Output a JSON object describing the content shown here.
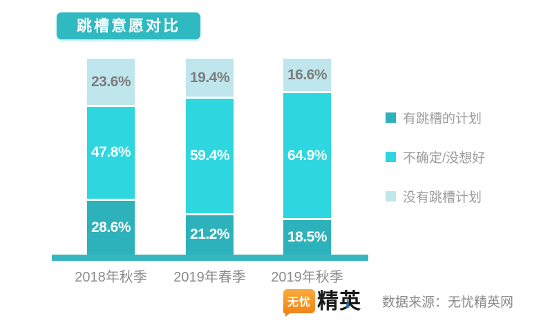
{
  "title": "跳槽意愿对比",
  "chart_data": {
    "type": "bar",
    "stacked": true,
    "unit": "%",
    "title": "跳槽意愿对比",
    "categories": [
      "2018年秋季",
      "2019年春季",
      "2019年秋季"
    ],
    "series": [
      {
        "name": "有跳槽的计划",
        "color": "#2db2bb",
        "label_color": "#ffffff",
        "values": [
          28.6,
          21.2,
          18.5
        ]
      },
      {
        "name": "不确定/没想好",
        "color": "#2ed7e0",
        "label_color": "#ffffff",
        "values": [
          47.8,
          59.4,
          64.9
        ]
      },
      {
        "name": "没有跳槽计划",
        "color": "#bfe6ec",
        "label_color": "#7d7d7d",
        "values": [
          23.6,
          19.4,
          16.6
        ]
      }
    ],
    "data_labels": [
      [
        "28.6%",
        "21.2%",
        "18.5%"
      ],
      [
        "47.8%",
        "59.4%",
        "64.9%"
      ],
      [
        "23.6%",
        "19.4%",
        "16.6%"
      ]
    ],
    "legend_position": "right",
    "ylim": [
      0,
      100
    ],
    "grid": false,
    "axis_color": "#36b7bf"
  },
  "footer": {
    "logo_wuyou": "无忧",
    "logo_jingying": "精英",
    "source": "数据来源：无忧精英网"
  }
}
